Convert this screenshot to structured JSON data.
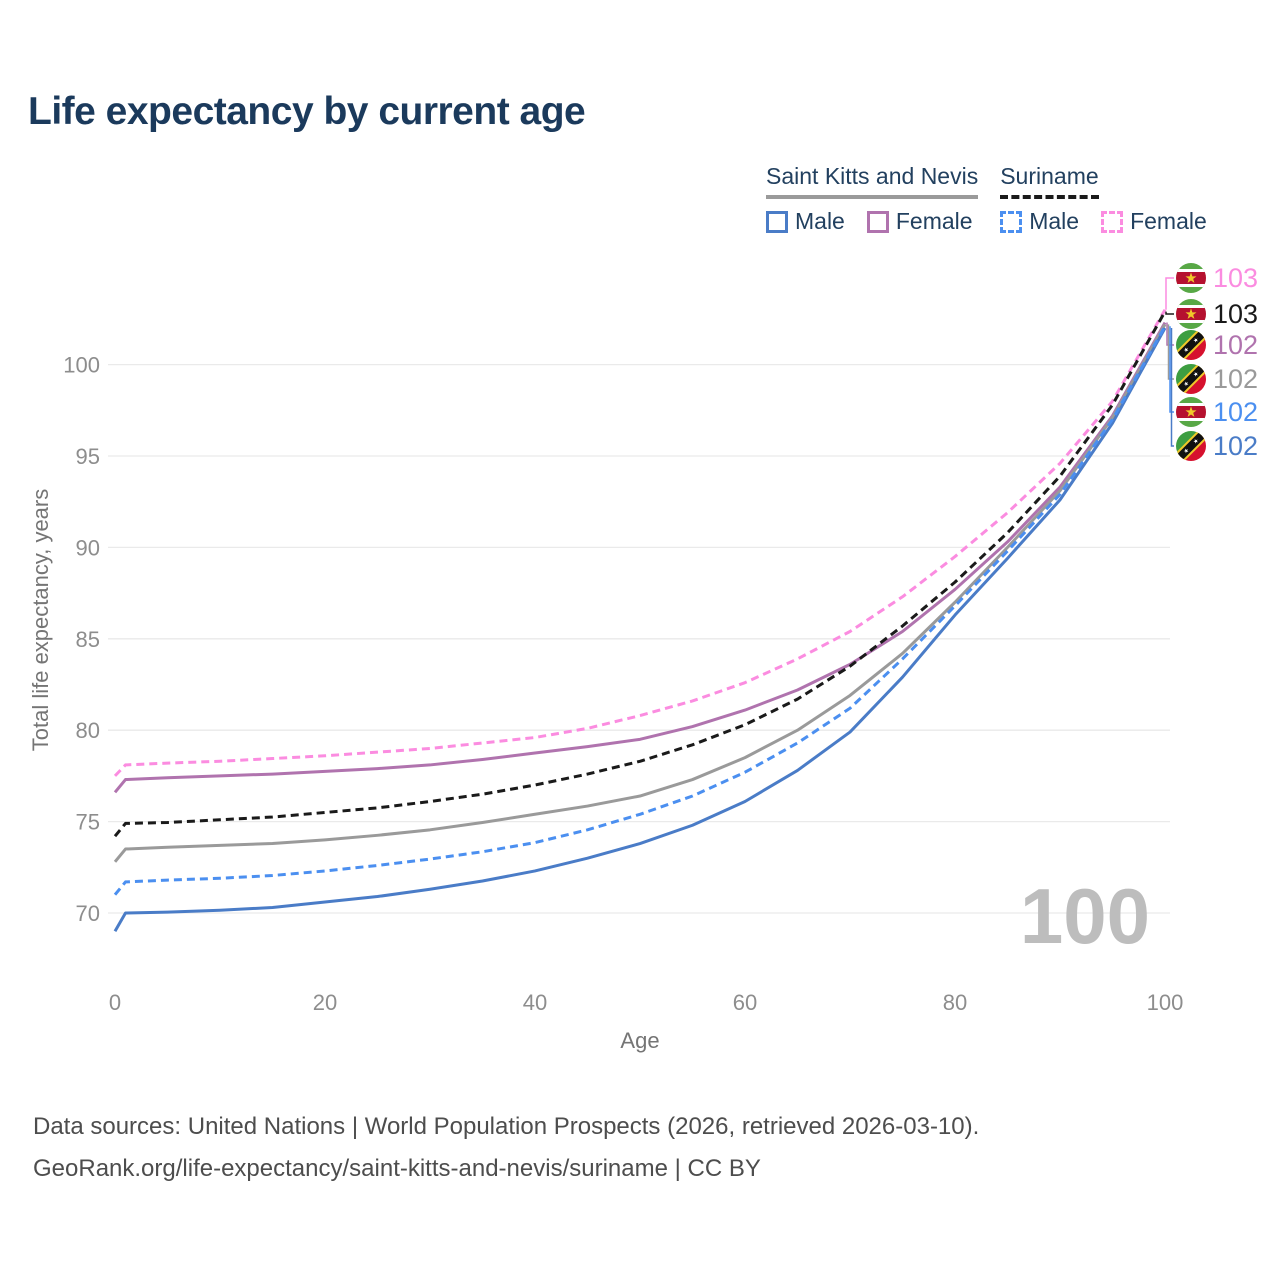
{
  "title": "Life expectancy by current age",
  "legend": {
    "groups": [
      {
        "name": "Saint Kitts and Nevis",
        "line_style": "solid",
        "underline_color": "#9a9a9a",
        "items": [
          {
            "label": "Male",
            "color": "#4a7cc7",
            "dashed": false
          },
          {
            "label": "Female",
            "color": "#b073ae",
            "dashed": false
          }
        ]
      },
      {
        "name": "Suriname",
        "line_style": "dashed",
        "underline_color": "#1a1a1a",
        "items": [
          {
            "label": "Male",
            "color": "#4b8ff0",
            "dashed": true
          },
          {
            "label": "Female",
            "color": "#fb8ce0",
            "dashed": true
          }
        ]
      }
    ]
  },
  "chart_data": {
    "type": "line",
    "title": "Life expectancy by current age",
    "xlabel": "Age",
    "ylabel": "Total life expectancy, years",
    "x_ticks": [
      0,
      20,
      40,
      60,
      80,
      100
    ],
    "y_ticks": [
      70,
      75,
      80,
      85,
      90,
      95,
      100
    ],
    "xlim": [
      0,
      100
    ],
    "ylim": [
      68.5,
      103.5
    ],
    "grid": "horizontal",
    "legend_position": "top-right",
    "ages": [
      0,
      1,
      5,
      10,
      15,
      20,
      25,
      30,
      35,
      40,
      45,
      50,
      55,
      60,
      65,
      70,
      75,
      80,
      85,
      90,
      95,
      100
    ],
    "series": [
      {
        "name": "Suriname Female",
        "country": "Suriname",
        "sex": "Female",
        "color": "#fb8ce0",
        "dashed": true,
        "end_value": 103,
        "values": [
          77.5,
          78.1,
          78.2,
          78.3,
          78.45,
          78.6,
          78.8,
          79.0,
          79.3,
          79.6,
          80.1,
          80.8,
          81.6,
          82.6,
          83.9,
          85.4,
          87.3,
          89.5,
          91.9,
          94.6,
          98.0,
          103.0
        ]
      },
      {
        "name": "Suriname Both sexes",
        "country": "Suriname",
        "sex": "Both",
        "color": "#1a1a1a",
        "dashed": true,
        "end_value": 103,
        "values": [
          74.2,
          74.9,
          74.95,
          75.1,
          75.25,
          75.5,
          75.75,
          76.1,
          76.5,
          77.0,
          77.6,
          78.3,
          79.2,
          80.3,
          81.7,
          83.5,
          85.7,
          88.1,
          90.8,
          93.9,
          97.8,
          102.9
        ]
      },
      {
        "name": "Saint Kitts and Nevis Female",
        "country": "Saint Kitts and Nevis",
        "sex": "Female",
        "color": "#b073ae",
        "dashed": false,
        "end_value": 102,
        "values": [
          76.6,
          77.3,
          77.4,
          77.5,
          77.6,
          77.75,
          77.9,
          78.1,
          78.4,
          78.75,
          79.1,
          79.5,
          80.2,
          81.1,
          82.2,
          83.6,
          85.4,
          87.7,
          90.3,
          93.3,
          97.2,
          102.3
        ]
      },
      {
        "name": "Saint Kitts and Nevis Both sexes",
        "country": "Saint Kitts and Nevis",
        "sex": "Both",
        "color": "#9a9a9a",
        "dashed": false,
        "end_value": 102,
        "values": [
          72.8,
          73.5,
          73.6,
          73.7,
          73.8,
          74.0,
          74.25,
          74.55,
          74.95,
          75.4,
          75.85,
          76.4,
          77.3,
          78.5,
          80.0,
          81.9,
          84.2,
          87.0,
          90.0,
          93.1,
          97.1,
          102.2
        ]
      },
      {
        "name": "Suriname Male",
        "country": "Suriname",
        "sex": "Male",
        "color": "#4b8ff0",
        "dashed": true,
        "end_value": 102,
        "values": [
          71.0,
          71.7,
          71.8,
          71.9,
          72.05,
          72.3,
          72.6,
          72.95,
          73.35,
          73.85,
          74.55,
          75.4,
          76.4,
          77.7,
          79.3,
          81.2,
          83.9,
          86.8,
          89.8,
          92.9,
          97.0,
          102.1
        ]
      },
      {
        "name": "Saint Kitts and Nevis Male",
        "country": "Saint Kitts and Nevis",
        "sex": "Male",
        "color": "#4a7cc7",
        "dashed": false,
        "end_value": 102,
        "values": [
          69.0,
          70.0,
          70.05,
          70.15,
          70.3,
          70.6,
          70.9,
          71.3,
          71.75,
          72.3,
          73.0,
          73.8,
          74.8,
          76.1,
          77.8,
          79.9,
          82.9,
          86.3,
          89.4,
          92.6,
          96.8,
          102.0
        ]
      }
    ]
  },
  "end_labels": [
    {
      "value": "103",
      "country": "Suriname",
      "flag": "suriname-flag-icon",
      "color": "#fb8ce0"
    },
    {
      "value": "103",
      "country": "Suriname",
      "flag": "suriname-flag-icon",
      "color": "#1a1a1a"
    },
    {
      "value": "102",
      "country": "Saint Kitts and Nevis",
      "flag": "saint-kitts-flag-icon",
      "color": "#b073ae"
    },
    {
      "value": "102",
      "country": "Saint Kitts and Nevis",
      "flag": "saint-kitts-flag-icon",
      "color": "#9a9a9a"
    },
    {
      "value": "102",
      "country": "Suriname",
      "flag": "suriname-flag-icon",
      "color": "#4b8ff0"
    },
    {
      "value": "102",
      "country": "Saint Kitts and Nevis",
      "flag": "saint-kitts-flag-icon",
      "color": "#4a7cc7"
    }
  ],
  "watermark_age": "100",
  "footer": {
    "line1": "Data sources: United Nations | World Population Prospects (2026, retrieved 2026-03-10).",
    "line2": "GeoRank.org/life-expectancy/saint-kitts-and-nevis/suriname | CC BY"
  },
  "colors": {
    "title_text": "#1b3a5c",
    "axis_tick_text": "#8d8d8d",
    "axis_title_text": "#757575",
    "gridline": "#eaeaea",
    "footer_text": "#4d4d4d",
    "watermark": "#bdbdbd"
  }
}
